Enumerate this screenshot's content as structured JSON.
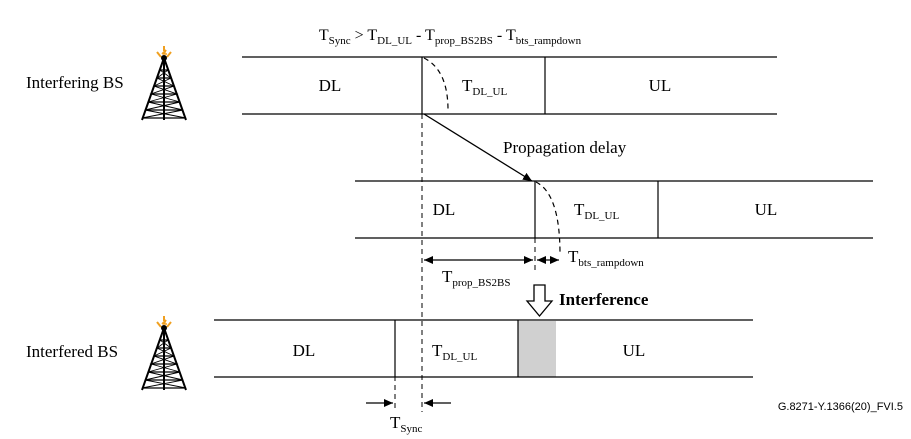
{
  "formula": {
    "t1": "T",
    "s1": "Sync",
    "op": " > ",
    "t2": "T",
    "s2": "DL_UL",
    "m1": " - ",
    "t3": "T",
    "s3": "prop_BS2BS",
    "m2": " - ",
    "t4": "T",
    "s4": "bts_rampdown"
  },
  "interfering_bs_label": "Interfering BS",
  "interfered_bs_label": "Interfered BS",
  "row1": {
    "dl": "DL",
    "t": "T",
    "t_sub": "DL_UL",
    "ul": "UL"
  },
  "row2": {
    "dl": "DL",
    "t": "T",
    "t_sub": "DL_UL",
    "ul": "UL"
  },
  "row3": {
    "dl": "DL",
    "t": "T",
    "t_sub": "DL_UL",
    "ul": "UL"
  },
  "propagation_delay": "Propagation delay",
  "tprop": {
    "t": "T",
    "sub": "prop_BS2BS"
  },
  "tbts": {
    "t": "T",
    "sub": "bts_rampdown"
  },
  "interference": "Interference",
  "tsync": {
    "t": "T",
    "sub": "Sync"
  },
  "figure_id": "G.8271-Y.1366(20)_FVI.5",
  "colors": {
    "interference_fill": "#d0d0d0",
    "antenna_spark": "#f0a020"
  }
}
